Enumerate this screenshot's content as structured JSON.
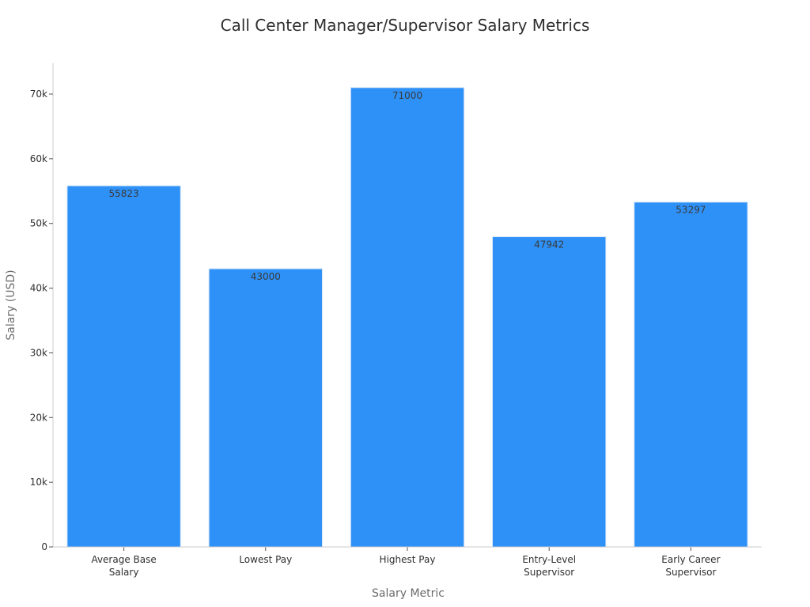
{
  "chart_data": {
    "type": "bar",
    "title": "Call Center Manager/Supervisor Salary Metrics",
    "xlabel": "Salary Metric",
    "ylabel": "Salary (USD)",
    "categories": [
      [
        "Average Base",
        "Salary"
      ],
      [
        "Lowest Pay"
      ],
      [
        "Highest Pay"
      ],
      [
        "Entry-Level",
        "Supervisor"
      ],
      [
        "Early Career",
        "Supervisor"
      ]
    ],
    "values": [
      55823,
      43000,
      71000,
      47942,
      53297
    ],
    "ylim": [
      0,
      75000
    ],
    "yticks": [
      0,
      10000,
      20000,
      30000,
      40000,
      50000,
      60000,
      70000
    ],
    "ytick_labels": [
      "0",
      "10k",
      "20k",
      "30k",
      "40k",
      "50k",
      "60k",
      "70k"
    ],
    "bar_color": "#2e91f8",
    "grid": false,
    "legend": "none"
  }
}
